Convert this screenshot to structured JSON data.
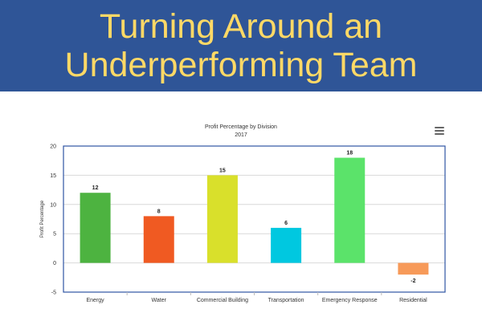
{
  "banner": {
    "line1": "Turning Around an",
    "line2": "Underperforming Team"
  },
  "chart_data": {
    "type": "bar",
    "title": "Profit Percentage by Division",
    "subtitle": "2017",
    "xlabel": "",
    "ylabel": "Profit Percentage",
    "categories": [
      "Energy",
      "Water",
      "Commercial Building",
      "Transportation",
      "Emergency Response",
      "Residential"
    ],
    "values": [
      12,
      8,
      15,
      6,
      18,
      -2
    ],
    "colors": [
      "#4db340",
      "#f05a22",
      "#d9e02b",
      "#00c8e0",
      "#5be36a",
      "#f79a59"
    ],
    "ylim": [
      -5,
      20
    ],
    "yticks": [
      -5,
      0,
      5,
      10,
      15,
      20
    ],
    "grid": true,
    "legend": "none",
    "data_labels": true
  },
  "menu_icon": "hamburger-menu-icon"
}
